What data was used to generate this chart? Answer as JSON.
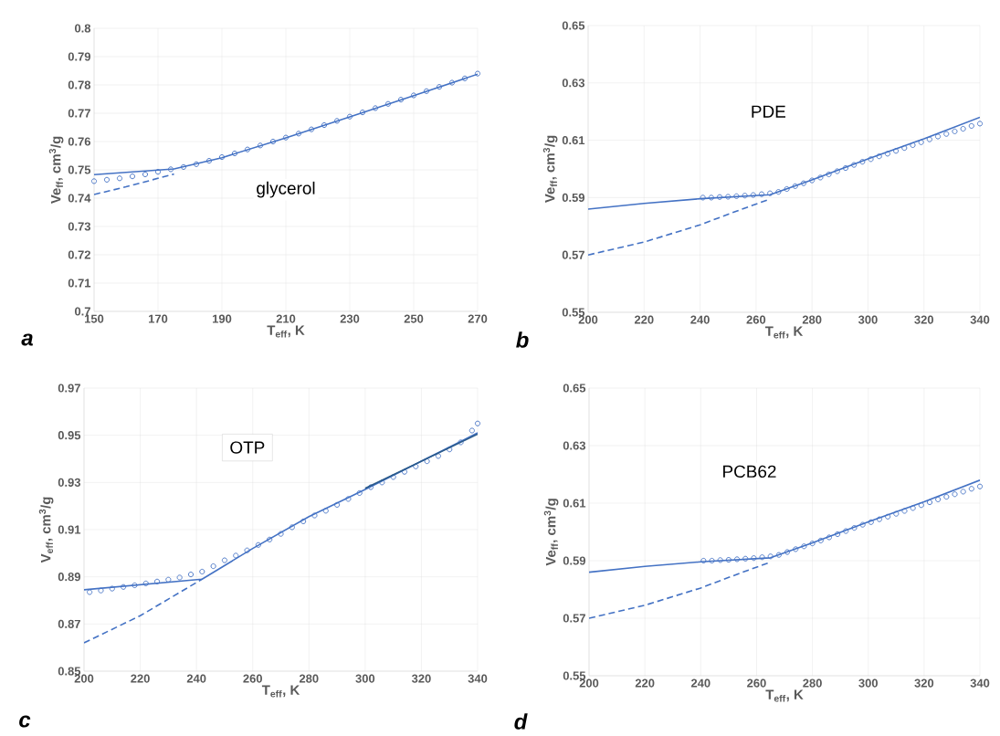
{
  "chart_data": [
    {
      "type": "scatter",
      "xlabel": "T$_{eff}$, K",
      "ylabel": "Ve$_{ff}$, cm$^{3}$/g",
      "annotations": [
        "glycerol",
        "a"
      ],
      "xlim": [
        150,
        270
      ],
      "ylim": [
        0.7,
        0.8
      ],
      "xticks": [
        150,
        170,
        190,
        210,
        230,
        250,
        270
      ],
      "yticks": [
        0.7,
        0.71,
        0.72,
        0.73,
        0.74,
        0.75,
        0.76,
        0.77,
        0.78,
        0.79,
        0.8
      ],
      "grid": true,
      "series": [
        {
          "type": "scatter",
          "marker": "circle",
          "color": "#4472c4",
          "x": [
            150,
            154,
            158,
            162,
            166,
            170,
            174,
            178,
            182,
            186,
            190,
            194,
            198,
            202,
            206,
            210,
            214,
            218,
            222,
            226,
            230,
            234,
            238,
            242,
            246,
            250,
            254,
            258,
            262,
            266,
            270
          ],
          "values": [
            0.746,
            0.7465,
            0.747,
            0.7477,
            0.7484,
            0.7493,
            0.7502,
            0.751,
            0.752,
            0.7532,
            0.7545,
            0.7558,
            0.7572,
            0.7586,
            0.76,
            0.7614,
            0.7628,
            0.7643,
            0.7658,
            0.7673,
            0.7688,
            0.7703,
            0.7718,
            0.7733,
            0.7748,
            0.7763,
            0.7778,
            0.7793,
            0.7808,
            0.7823,
            0.784
          ]
        },
        {
          "type": "line",
          "marker": "none",
          "line_style": "solid",
          "color": "#4472c4",
          "x": [
            150,
            175,
            190,
            210,
            230,
            250,
            270
          ],
          "values": [
            0.7483,
            0.7503,
            0.7543,
            0.7613,
            0.7687,
            0.7762,
            0.7838
          ]
        },
        {
          "type": "line",
          "marker": "none",
          "line_style": "dashed",
          "color": "#4472c4",
          "x": [
            150,
            160,
            175
          ],
          "values": [
            0.7413,
            0.744,
            0.7485
          ]
        }
      ]
    },
    {
      "type": "scatter",
      "xlabel": "T$_{eff}$, K",
      "ylabel": "Ve$_{ff}$, cm$^{3}$/g",
      "annotations": [
        "PDE",
        "b"
      ],
      "xlim": [
        200,
        340
      ],
      "ylim": [
        0.55,
        0.65
      ],
      "xticks": [
        200,
        220,
        240,
        260,
        280,
        300,
        320,
        340
      ],
      "yticks": [
        0.55,
        0.57,
        0.59,
        0.61,
        0.63,
        0.65
      ],
      "grid": true,
      "series": [
        {
          "type": "scatter",
          "marker": "circle",
          "color": "#4472c4",
          "x": [
            241,
            244,
            247,
            250,
            253,
            256,
            259,
            262,
            265,
            268,
            271,
            274,
            277,
            280,
            283,
            286,
            289,
            292,
            295,
            298,
            301,
            304,
            307,
            310,
            313,
            316,
            319,
            322,
            325,
            328,
            331,
            334,
            337,
            340
          ],
          "values": [
            0.59,
            0.59,
            0.5902,
            0.5903,
            0.5905,
            0.5907,
            0.5909,
            0.5912,
            0.5915,
            0.592,
            0.593,
            0.594,
            0.595,
            0.596,
            0.597,
            0.5981,
            0.5992,
            0.6003,
            0.6014,
            0.6025,
            0.6034,
            0.6044,
            0.6053,
            0.6063,
            0.6073,
            0.6083,
            0.6093,
            0.6103,
            0.6113,
            0.6122,
            0.6131,
            0.614,
            0.615,
            0.6158
          ]
        },
        {
          "type": "line",
          "marker": "none",
          "line_style": "solid",
          "color": "#4472c4",
          "x": [
            200,
            220,
            240,
            265,
            280,
            300,
            320,
            340
          ],
          "values": [
            0.586,
            0.588,
            0.5896,
            0.591,
            0.5962,
            0.6035,
            0.6105,
            0.618
          ]
        },
        {
          "type": "line",
          "marker": "none",
          "line_style": "dashed",
          "color": "#4472c4",
          "x": [
            200,
            220,
            240,
            255,
            265
          ],
          "values": [
            0.57,
            0.5745,
            0.5805,
            0.586,
            0.5895
          ]
        }
      ]
    },
    {
      "type": "scatter",
      "xlabel": "T$_{eff}$, K",
      "ylabel": "V$_{eff}$, cm$^{3}$/g",
      "annotations": [
        "OTP",
        "c"
      ],
      "xlim": [
        200,
        340
      ],
      "ylim": [
        0.85,
        0.97
      ],
      "xticks": [
        200,
        220,
        240,
        260,
        280,
        300,
        320,
        340
      ],
      "yticks": [
        0.85,
        0.87,
        0.89,
        0.91,
        0.93,
        0.95,
        0.97
      ],
      "grid": true,
      "series": [
        {
          "type": "scatter",
          "marker": "circle",
          "color": "#4472c4",
          "x": [
            202,
            206,
            210,
            214,
            218,
            222,
            226,
            230,
            234,
            238,
            242,
            246,
            250,
            254,
            258,
            262,
            266,
            270,
            274,
            278,
            282,
            286,
            290,
            294,
            298,
            302,
            306,
            310,
            314,
            318,
            322,
            326,
            330,
            334,
            338,
            340
          ],
          "values": [
            0.8835,
            0.8842,
            0.885,
            0.8857,
            0.8864,
            0.8872,
            0.888,
            0.8888,
            0.8897,
            0.891,
            0.8922,
            0.8945,
            0.897,
            0.899,
            0.9012,
            0.9035,
            0.9058,
            0.9082,
            0.911,
            0.9135,
            0.916,
            0.918,
            0.9205,
            0.923,
            0.9255,
            0.928,
            0.93,
            0.9323,
            0.9345,
            0.9368,
            0.939,
            0.9412,
            0.944,
            0.947,
            0.952,
            0.955
          ]
        },
        {
          "type": "line",
          "marker": "none",
          "line_style": "solid",
          "color": "#4472c4",
          "x": [
            200,
            242,
            260,
            280,
            300,
            320,
            340
          ],
          "values": [
            0.8845,
            0.889,
            0.902,
            0.9155,
            0.927,
            0.939,
            0.951
          ]
        },
        {
          "type": "line",
          "marker": "none",
          "line_style": "dashed",
          "color": "#4472c4",
          "x": [
            200,
            220,
            242
          ],
          "values": [
            0.862,
            0.8735,
            0.889
          ]
        },
        {
          "type": "line",
          "marker": "none",
          "line_style": "solid",
          "color": "#2a5a8a",
          "x": [
            300,
            340
          ],
          "values": [
            0.9275,
            0.9505
          ]
        }
      ]
    },
    {
      "type": "scatter",
      "xlabel": "T$_{eff}$, K",
      "ylabel": "Ve$_{ff}$, cm$^{3}$/g",
      "annotations": [
        "PCB62",
        "d"
      ],
      "xlim": [
        200,
        340
      ],
      "ylim": [
        0.55,
        0.65
      ],
      "xticks": [
        200,
        220,
        240,
        260,
        280,
        300,
        320,
        340
      ],
      "yticks": [
        0.55,
        0.57,
        0.59,
        0.61,
        0.63,
        0.65
      ],
      "grid": true,
      "series": [
        {
          "type": "scatter",
          "marker": "circle",
          "color": "#4472c4",
          "x": [
            241,
            244,
            247,
            250,
            253,
            256,
            259,
            262,
            265,
            268,
            271,
            274,
            277,
            280,
            283,
            286,
            289,
            292,
            295,
            298,
            301,
            304,
            307,
            310,
            313,
            316,
            319,
            322,
            325,
            328,
            331,
            334,
            337,
            340
          ],
          "values": [
            0.59,
            0.59,
            0.5902,
            0.5903,
            0.5905,
            0.5907,
            0.5909,
            0.5912,
            0.5915,
            0.592,
            0.593,
            0.594,
            0.595,
            0.596,
            0.597,
            0.5981,
            0.5992,
            0.6003,
            0.6014,
            0.6025,
            0.6034,
            0.6044,
            0.6053,
            0.6063,
            0.6073,
            0.6083,
            0.6093,
            0.6103,
            0.6113,
            0.6122,
            0.6131,
            0.614,
            0.615,
            0.6158
          ]
        },
        {
          "type": "line",
          "marker": "none",
          "line_style": "solid",
          "color": "#4472c4",
          "x": [
            200,
            220,
            240,
            265,
            280,
            300,
            320,
            340
          ],
          "values": [
            0.586,
            0.588,
            0.5896,
            0.591,
            0.5962,
            0.6035,
            0.6105,
            0.618
          ]
        },
        {
          "type": "line",
          "marker": "none",
          "line_style": "dashed",
          "color": "#4472c4",
          "x": [
            200,
            220,
            240,
            255,
            265
          ],
          "values": [
            0.57,
            0.5745,
            0.5805,
            0.586,
            0.5895
          ]
        }
      ]
    }
  ]
}
